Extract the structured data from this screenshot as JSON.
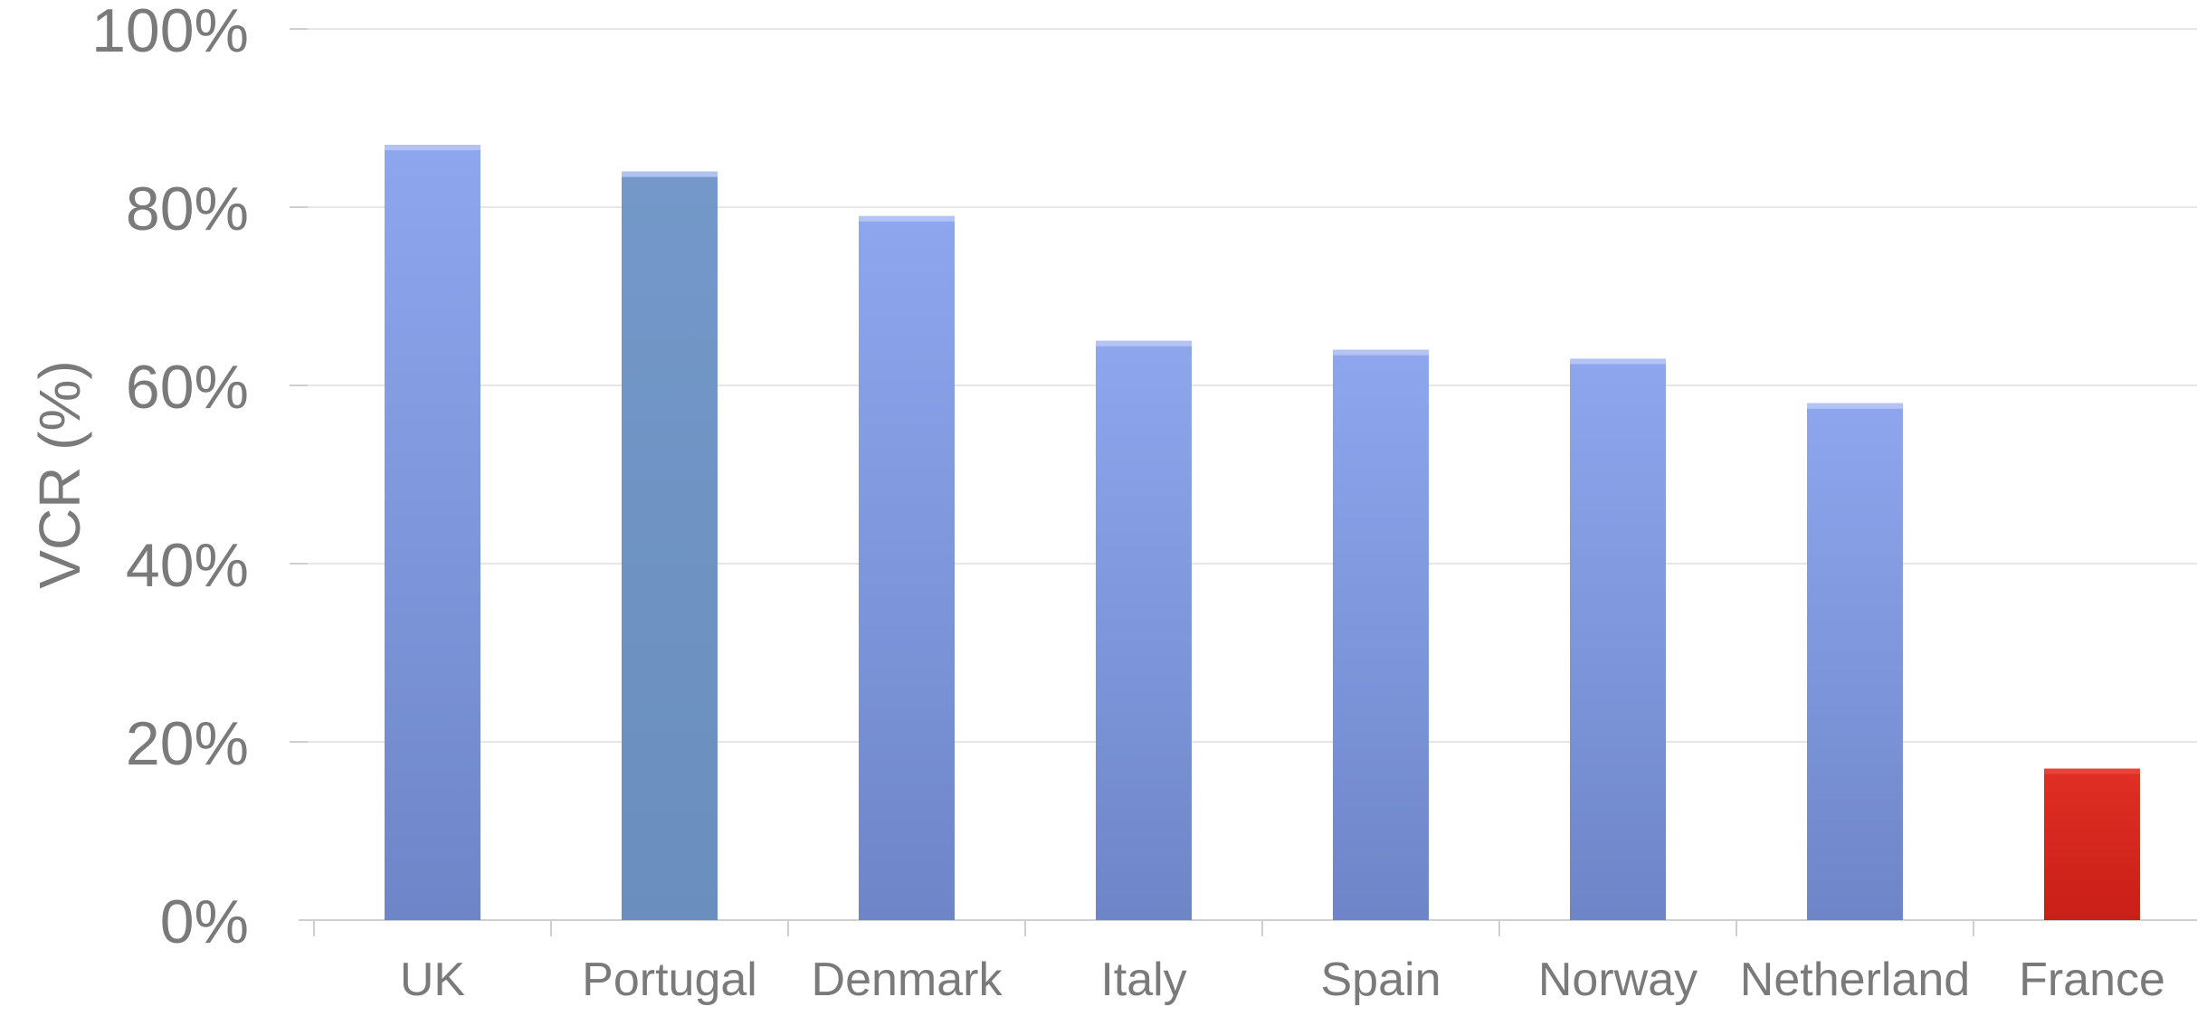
{
  "chart_data": {
    "type": "bar",
    "title": "",
    "xlabel": "",
    "ylabel": "VCR (%)",
    "ylim": [
      0,
      100
    ],
    "yticks": [
      0,
      20,
      40,
      60,
      80,
      100
    ],
    "ytick_labels": [
      "0%",
      "20%",
      "40%",
      "60%",
      "80%",
      "100%"
    ],
    "grid": true,
    "legend": "none",
    "categories": [
      "UK",
      "Portugal",
      "Denmark",
      "Italy",
      "Spain",
      "Norway",
      "Netherland",
      "France"
    ],
    "values": [
      87,
      84,
      79,
      65,
      64,
      63,
      58,
      17
    ],
    "colors": {
      "default_bar": "#7f9be0",
      "portugal_bar": "#6f93c4",
      "france_bar": "#d6251c",
      "grid": "#e6e6e6",
      "axis": "#cfcfcf",
      "text": "#7a7a7a"
    },
    "bar_color_by_category": {
      "UK": "#7f9be0",
      "Portugal": "#6f93c4",
      "Denmark": "#7f9be0",
      "Italy": "#7f9be0",
      "Spain": "#7f9be0",
      "Norway": "#7f9be0",
      "Netherland": "#7f9be0",
      "France": "#d6251c"
    }
  }
}
